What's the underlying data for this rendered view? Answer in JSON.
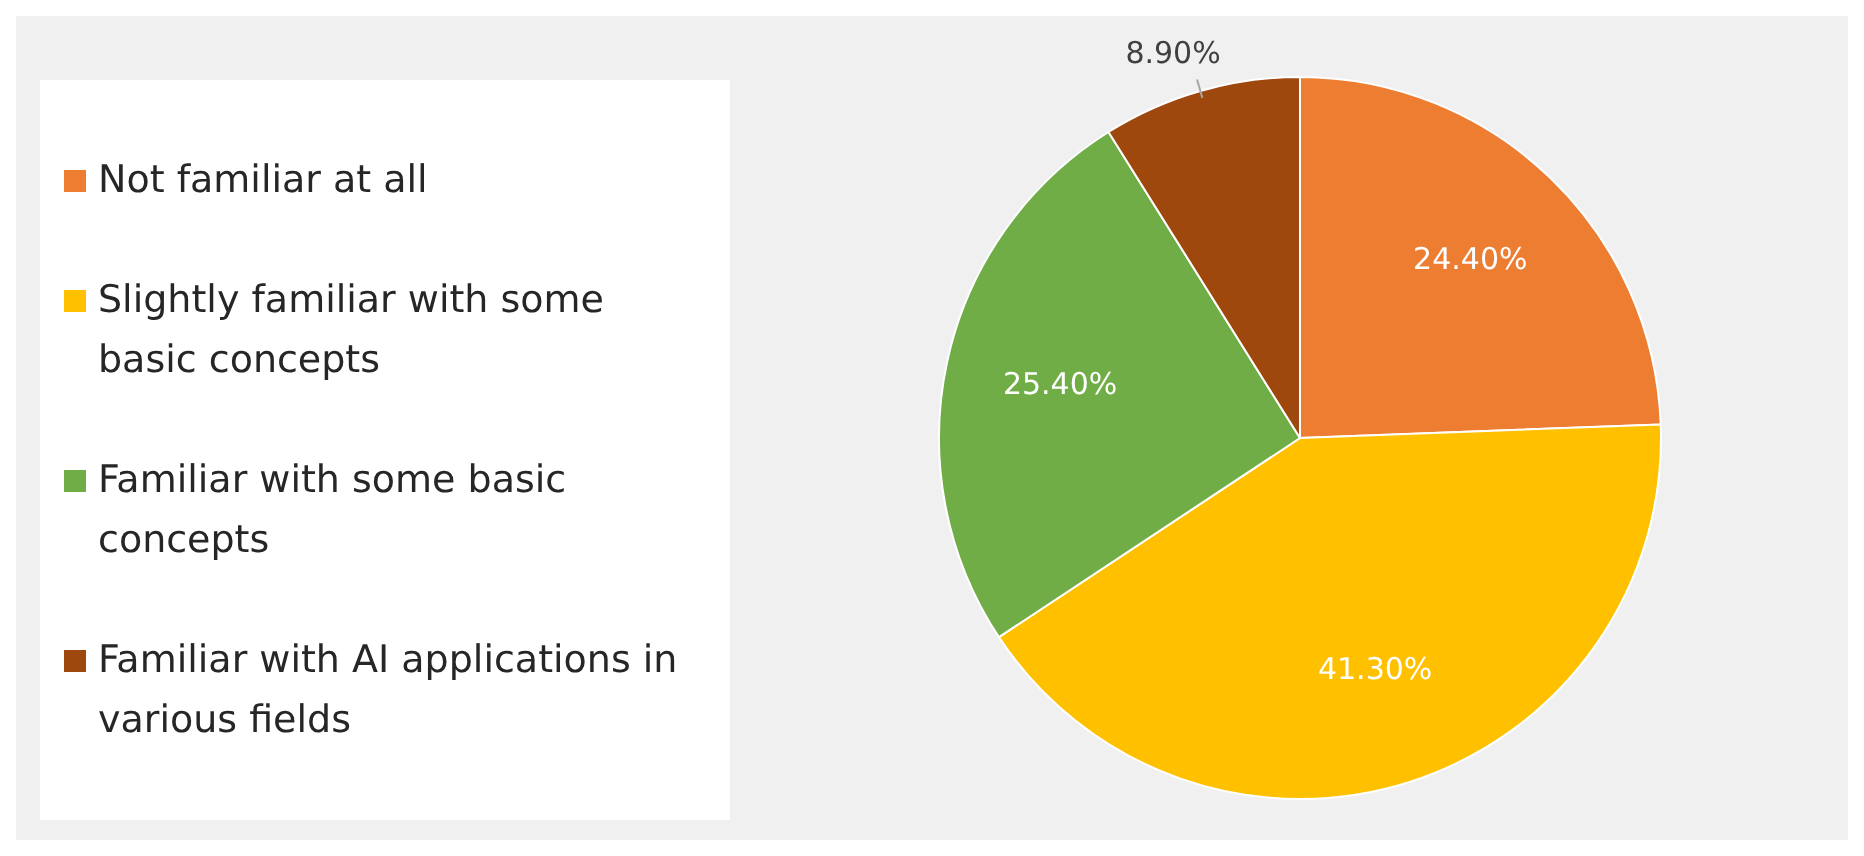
{
  "chart_data": {
    "type": "pie",
    "categories": [
      "Not familiar at all",
      "Slightly familiar with some basic concepts",
      "Familiar with some basic concepts",
      "Familiar with AI applications in various fields"
    ],
    "values": [
      24.4,
      41.3,
      25.4,
      8.9
    ],
    "colors": [
      "#ed7d31",
      "#ffc000",
      "#70ad47",
      "#9e480e"
    ],
    "value_labels": [
      "24.40%",
      "41.30%",
      "25.40%",
      "8.90%"
    ],
    "legend": "left"
  }
}
